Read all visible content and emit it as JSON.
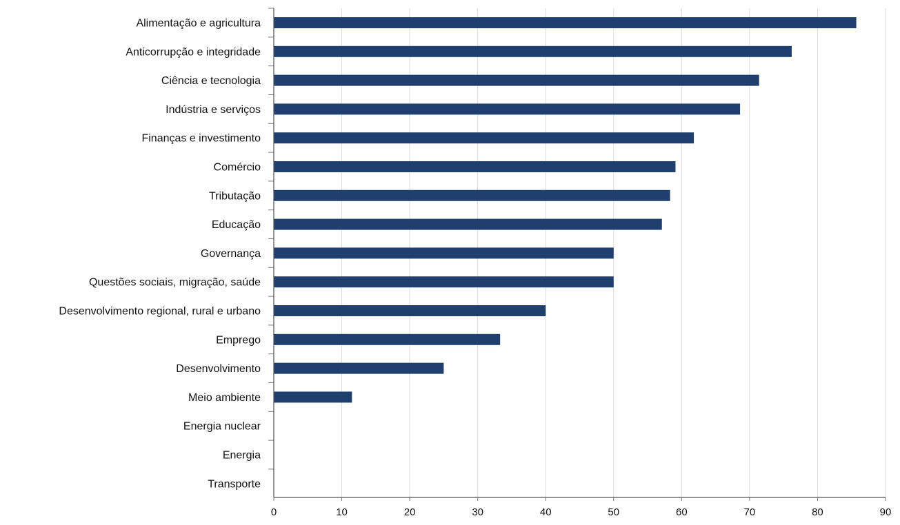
{
  "chart_data": {
    "type": "bar",
    "orientation": "horizontal",
    "title": "",
    "xlabel": "",
    "ylabel": "",
    "xlim": [
      0,
      90
    ],
    "x_ticks": [
      0,
      10,
      20,
      30,
      40,
      50,
      60,
      70,
      80,
      90
    ],
    "grid": "vertical",
    "bar_color": "#1f3f6e",
    "categories": [
      "Alimentação e agricultura",
      "Anticorrupção e integridade",
      "Ciência e tecnologia",
      "Indústria e serviços",
      "Finanças e investimento",
      "Comércio",
      "Tributação",
      "Educação",
      "Governança",
      "Questões sociais, migração, saúde",
      "Desenvolvimento regional, rural e urbano",
      "Emprego",
      "Desenvolvimento",
      "Meio ambiente",
      "Energia nuclear",
      "Energia",
      "Transporte"
    ],
    "values": [
      85.7,
      76.2,
      71.4,
      68.6,
      61.8,
      59.1,
      58.3,
      57.1,
      50.0,
      50.0,
      40.0,
      33.3,
      25.0,
      11.5,
      0,
      0,
      0
    ]
  }
}
